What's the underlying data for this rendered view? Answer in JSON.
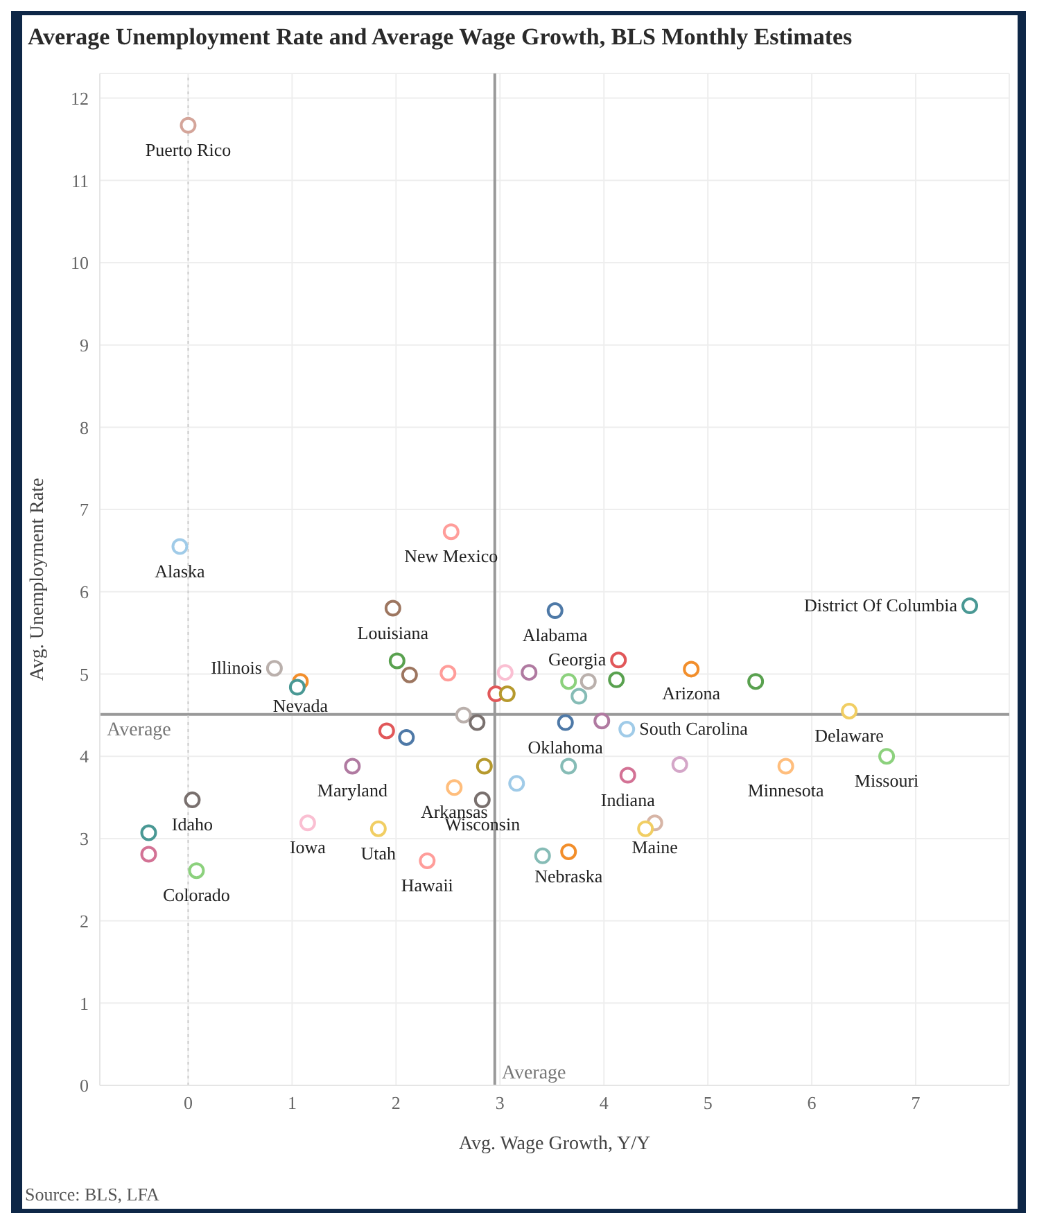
{
  "chart_data": {
    "type": "scatter",
    "title": "Average Unemployment Rate and Average Wage Growth, BLS Monthly Estimates",
    "xlabel": "Avg. Wage Growth, Y/Y",
    "ylabel": "Avg. Unemployment Rate",
    "annotations": [
      "Source: BLS, LFA"
    ],
    "x": [
      0,
      -0.08,
      2.53,
      1.97,
      3.53,
      4.14,
      7.52,
      0.83,
      1.08,
      4.84,
      6.36,
      4.22,
      3.63,
      1.58,
      2.56,
      2.83,
      4.23,
      5.75,
      6.72,
      0.04,
      1.15,
      1.83,
      2.3,
      0.08,
      4.49,
      3.66,
      1.05,
      -0.38,
      -0.38,
      2.01,
      2.13,
      2.5,
      3.05,
      3.28,
      2.96,
      3.07,
      2.65,
      2.78,
      1.91,
      2.1,
      3.66,
      3.85,
      3.76,
      4.12,
      5.46,
      3.98,
      2.85,
      3.16,
      3.66,
      4.73,
      3.41,
      4.4
    ],
    "values": [
      11.67,
      6.55,
      6.73,
      5.8,
      5.77,
      5.17,
      5.83,
      5.07,
      4.91,
      5.06,
      4.55,
      4.33,
      4.41,
      3.88,
      3.62,
      3.47,
      3.77,
      3.88,
      4.0,
      3.47,
      3.19,
      3.12,
      2.73,
      2.61,
      3.19,
      2.84,
      4.84,
      3.07,
      2.81,
      5.16,
      4.99,
      5.01,
      5.02,
      5.02,
      4.76,
      4.76,
      4.5,
      4.41,
      4.31,
      4.23,
      4.91,
      4.91,
      4.73,
      4.93,
      4.91,
      4.43,
      3.88,
      3.67,
      3.88,
      3.9,
      2.79,
      3.12
    ],
    "value_labels": [
      "Puerto Rico",
      "Alaska",
      "New Mexico",
      "Louisiana",
      "Alabama",
      "Georgia",
      "District Of Columbia",
      "Illinois",
      "Nevada",
      "Arizona",
      "Delaware",
      "South Carolina",
      "Oklahoma",
      "Maryland",
      "Arkansas",
      "Wisconsin",
      "Indiana",
      "Minnesota",
      "Missouri",
      "Idaho",
      "Iowa",
      "Utah",
      "Hawaii",
      "Colorado",
      "Maine",
      "Nebraska",
      null,
      null,
      null,
      null,
      null,
      null,
      null,
      null,
      null,
      null,
      null,
      null,
      null,
      null,
      null,
      null,
      null,
      null,
      null,
      null,
      null,
      null,
      null,
      null,
      null,
      null
    ],
    "colors": [
      "#d4a59a",
      "#a0cbe8",
      "#ff9d9a",
      "#9d7660",
      "#4e79a7",
      "#e15759",
      "#499894",
      "#bab0ac",
      "#f28e2b",
      "#f28e2b",
      "#f1ce63",
      "#a0cbe8",
      "#4e79a7",
      "#b07aa1",
      "#ffbe7d",
      "#79706e",
      "#d37295",
      "#ffbe7d",
      "#8cd17d",
      "#79706e",
      "#fabfd2",
      "#f1ce63",
      "#ff9d9a",
      "#8cd17d",
      "#d7b5a6",
      "#f28e2b",
      "#499894",
      "#499894",
      "#d37295",
      "#59a14f",
      "#9d7660",
      "#ff9d9a",
      "#fabfd2",
      "#b07aa1",
      "#e15759",
      "#b6992d",
      "#bab0ac",
      "#79706e",
      "#e15759",
      "#4e79a7",
      "#8cd17d",
      "#bab0ac",
      "#86bcb6",
      "#59a14f",
      "#59a14f",
      "#b07aa1",
      "#b6992d",
      "#a0cbe8",
      "#86bcb6",
      "#d4a6c8",
      "#86bcb6",
      "#f1ce63"
    ],
    "marker": "circle",
    "xlim": [
      -0.85,
      7.9
    ],
    "xticks": [
      0,
      1,
      2,
      3,
      4,
      5,
      6,
      7
    ],
    "ylim": [
      0,
      12.3
    ],
    "yticks": [
      0,
      1,
      2,
      3,
      4,
      5,
      6,
      7,
      8,
      9,
      10,
      11,
      12
    ],
    "grid": true,
    "ref_lines": [
      {
        "axis": "y",
        "value": 4.51,
        "label": "Average",
        "color": "#999999",
        "line_style": "solid"
      },
      {
        "axis": "x",
        "value": 2.95,
        "label": "Average",
        "color": "#999999",
        "line_style": "solid"
      },
      {
        "axis": "x",
        "value": 0,
        "label": null,
        "color": "#cccccc",
        "line_style": "dotted"
      }
    ]
  }
}
